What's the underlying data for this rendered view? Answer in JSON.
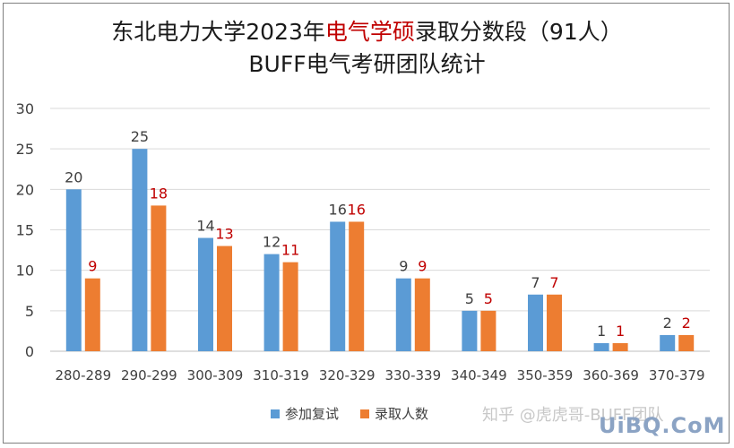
{
  "title_line1_a": "东北电力大学2023年",
  "title_line1_b": "电气学硕",
  "title_line1_c": "录取分数段（91人）",
  "title_line2": "BUFF电气考研团队统计",
  "watermark_zhihu": "知乎 @虎虎哥-BUFF团队",
  "watermark_site": "UiBQ.CoM",
  "colors": {
    "series1": "#5b9bd5",
    "series2": "#ed7d31",
    "label2": "#c00000",
    "grid": "#d9d9d9"
  },
  "chart_data": {
    "type": "bar",
    "title": "东北电力大学2023年电气学硕录取分数段（91人） BUFF电气考研团队统计",
    "categories": [
      "280-289",
      "290-299",
      "300-309",
      "310-319",
      "320-329",
      "330-339",
      "340-349",
      "350-359",
      "360-369",
      "370-379"
    ],
    "series": [
      {
        "name": "参加复试",
        "values": [
          20,
          25,
          14,
          12,
          16,
          9,
          5,
          7,
          1,
          2
        ]
      },
      {
        "name": "录取人数",
        "values": [
          9,
          18,
          13,
          11,
          16,
          9,
          5,
          7,
          1,
          2
        ]
      }
    ],
    "ylim": [
      0,
      30
    ],
    "yticks": [
      0,
      5,
      10,
      15,
      20,
      25,
      30
    ],
    "grid": true,
    "legend": "bottom"
  }
}
